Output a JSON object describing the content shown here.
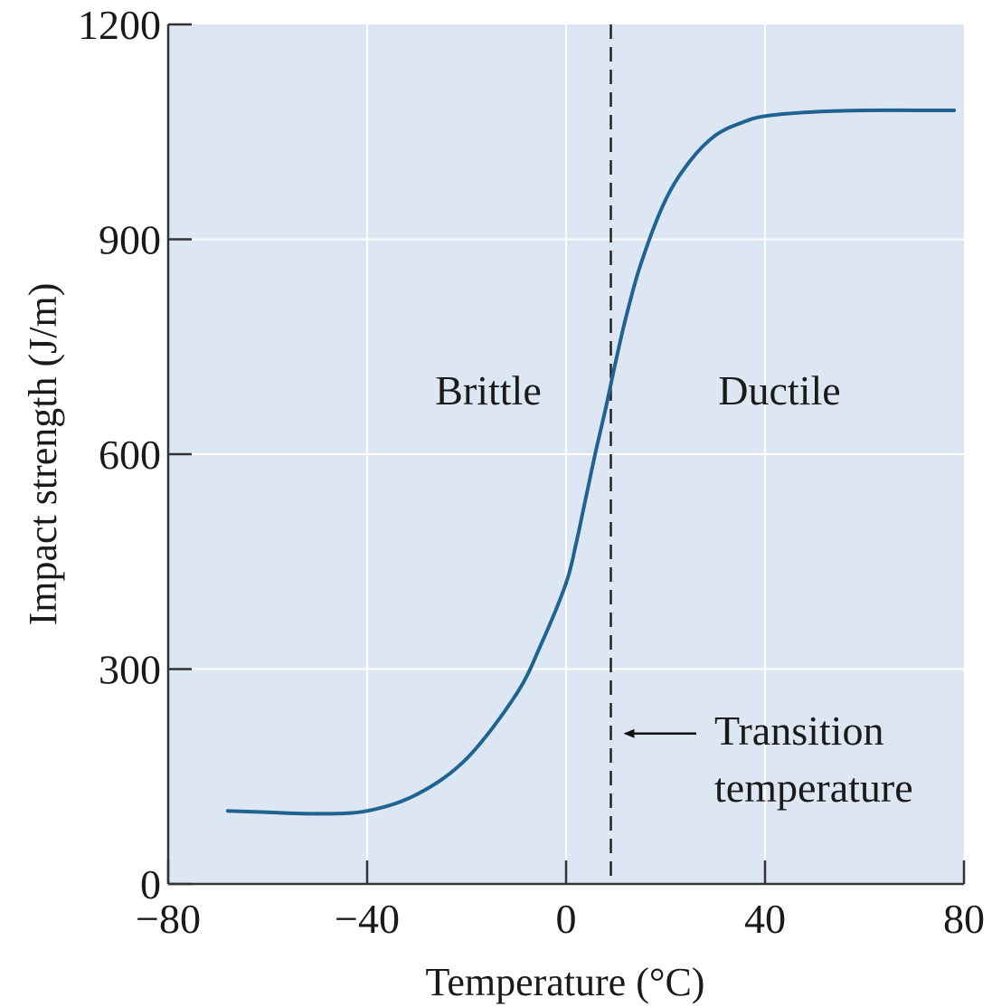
{
  "chart_data": {
    "type": "line",
    "xlabel": "Temperature (°C)",
    "ylabel": "Impact strength (J/m)",
    "xlim": [
      -80,
      80
    ],
    "ylim": [
      0,
      1200
    ],
    "xticks": [
      -80,
      -40,
      0,
      40,
      80
    ],
    "yticks": [
      0,
      300,
      600,
      900,
      1200
    ],
    "x_tick_labels": [
      "−80",
      "−40",
      "0",
      "40",
      "80"
    ],
    "y_tick_labels": [
      "0",
      "300",
      "600",
      "900",
      "1200"
    ],
    "grid": true,
    "series": [
      {
        "color": "#1f6391",
        "x": [
          -68,
          -60,
          -50,
          -40,
          -30,
          -20,
          -10,
          -5,
          0,
          2,
          4,
          6,
          8,
          10,
          12,
          15,
          20,
          25,
          30,
          35,
          40,
          50,
          60,
          70,
          78
        ],
        "y": [
          102,
          100,
          98,
          102,
          125,
          175,
          265,
          335,
          420,
          475,
          540,
          605,
          665,
          730,
          790,
          865,
          955,
          1010,
          1045,
          1062,
          1072,
          1078,
          1080,
          1080,
          1080
        ]
      }
    ],
    "transition_temperature": 9,
    "annotations": {
      "brittle": "Brittle",
      "ductile": "Ductile",
      "transition_line1": "Transition",
      "transition_line2": "temperature"
    },
    "colors": {
      "plot_background": "#dde7f3",
      "grid": "#ffffff",
      "curve": "#1f6391",
      "axis": "#333333"
    }
  }
}
